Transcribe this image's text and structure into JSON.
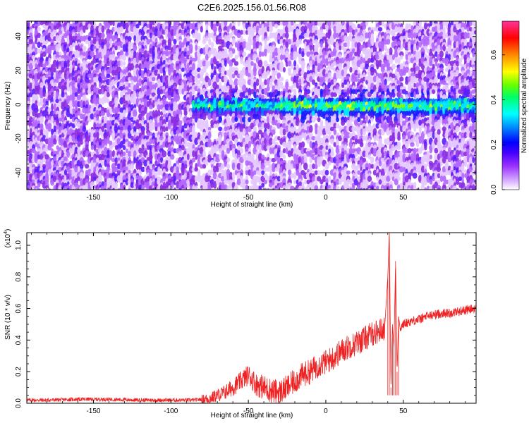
{
  "title": "C2E6.2025.156.01.56.R08",
  "chart_data": [
    {
      "type": "heatmap",
      "title": "C2E6.2025.156.01.56.R08",
      "xlabel": "Height of straight line (km)",
      "ylabel": "Frequency (Hz)",
      "xlim": [
        -193,
        97
      ],
      "ylim": [
        -50,
        49
      ],
      "x_ticks": [
        "-150",
        "-100",
        "-50",
        "0",
        "50"
      ],
      "x_tick_values": [
        -150,
        -100,
        -50,
        0,
        50
      ],
      "y_ticks": [
        "-40",
        "-20",
        "0",
        "20",
        "40"
      ],
      "y_tick_values": [
        -40,
        -20,
        0,
        20,
        40
      ],
      "colorbar": {
        "label": "Normalized spectral amplitude",
        "range": [
          0.0,
          0.75
        ],
        "ticks": [
          "0.0",
          "0.2",
          "0.4",
          "0.6"
        ],
        "tick_values": [
          0.0,
          0.2,
          0.4,
          0.6
        ],
        "colors": [
          "#ffffff",
          "#9b30ff",
          "#0000ff",
          "#00ffff",
          "#00ff00",
          "#ffff00",
          "#ff0000",
          "#ff33aa"
        ]
      },
      "description_bands": [
        {
          "x_range": [
            -193,
            -85
          ],
          "freq_range": [
            -50,
            49
          ],
          "level": 0.05
        },
        {
          "x_range": [
            -85,
            97
          ],
          "freq_range": [
            -5,
            5
          ],
          "level": 0.25
        }
      ]
    },
    {
      "type": "line",
      "xlabel": "Height of straight line (km)",
      "ylabel": "SNR (10 * v/v)",
      "multiplier_label": "(x10",
      "multiplier_exp": "4",
      "multiplier_close": ")",
      "xlim": [
        -193,
        97
      ],
      "ylim": [
        0.0,
        1.08
      ],
      "x_ticks": [
        "-150",
        "-100",
        "-50",
        "0",
        "50"
      ],
      "x_tick_values": [
        -150,
        -100,
        -50,
        0,
        50
      ],
      "y_ticks": [
        "0.0",
        "0.2",
        "0.4",
        "0.6",
        "0.8",
        "1.0"
      ],
      "y_tick_values": [
        0.0,
        0.2,
        0.4,
        0.6,
        0.8,
        1.0
      ],
      "color": "#ee2222",
      "series": [
        {
          "x": [
            -193,
            -180,
            -160,
            -140,
            -120,
            -100,
            -85,
            -75,
            -70,
            -65,
            -60,
            -55,
            -50,
            -48,
            -45,
            -40,
            -35,
            -30,
            -25,
            -20,
            -15,
            -10,
            -5,
            0,
            5,
            10,
            15,
            20,
            25,
            30,
            35,
            38,
            40,
            41,
            42,
            43,
            44,
            45,
            46,
            47,
            48,
            50,
            55,
            60,
            65,
            70,
            75,
            80,
            85,
            90,
            97
          ],
          "y": [
            0.02,
            0.02,
            0.025,
            0.025,
            0.02,
            0.02,
            0.02,
            0.03,
            0.05,
            0.07,
            0.1,
            0.14,
            0.18,
            0.16,
            0.12,
            0.1,
            0.08,
            0.07,
            0.1,
            0.14,
            0.18,
            0.2,
            0.24,
            0.26,
            0.29,
            0.33,
            0.36,
            0.38,
            0.41,
            0.44,
            0.46,
            0.48,
            0.8,
            1.08,
            0.1,
            0.5,
            0.35,
            0.9,
            0.2,
            0.55,
            0.47,
            0.5,
            0.52,
            0.53,
            0.55,
            0.56,
            0.57,
            0.57,
            0.58,
            0.59,
            0.6
          ]
        }
      ]
    }
  ]
}
